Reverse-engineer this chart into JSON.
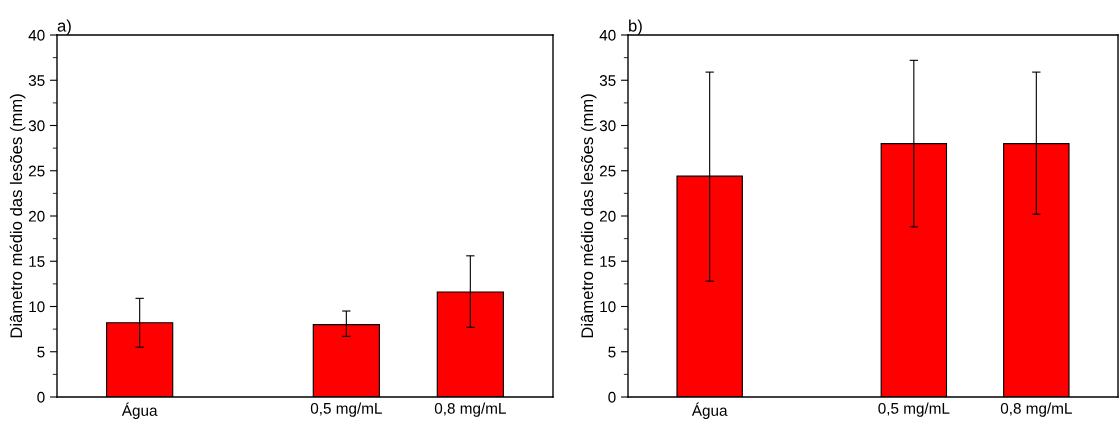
{
  "chart_data": [
    {
      "type": "bar",
      "title": "a)",
      "ylabel": "Diâmetro médio das lesões (mm)",
      "x": [
        0,
        0.5,
        0.8
      ],
      "values": [
        8.2,
        8.0,
        11.6
      ],
      "errors": [
        [
          5.5,
          10.9
        ],
        [
          6.7,
          9.5
        ],
        [
          7.7,
          15.6
        ]
      ],
      "color": "#ff0000",
      "xlim": [
        -0.2,
        1.0
      ],
      "xticks": [
        {
          "value": 0,
          "label": "Água"
        },
        {
          "value": 0.5,
          "label": "0,5 mg/mL"
        },
        {
          "value": 0.8,
          "label": "0,8 mg/mL"
        }
      ],
      "ylim": [
        0,
        40
      ],
      "yticks": [
        0,
        5,
        10,
        15,
        20,
        25,
        30,
        35,
        40
      ],
      "grid": false,
      "legend": false
    },
    {
      "type": "bar",
      "title": "b)",
      "ylabel": "Diâmetro médio das lesões (mm)",
      "x": [
        0,
        0.5,
        0.8
      ],
      "values": [
        24.4,
        28.0,
        28.0
      ],
      "errors": [
        [
          12.8,
          35.9
        ],
        [
          18.8,
          37.2
        ],
        [
          20.2,
          35.9
        ]
      ],
      "color": "#ff0000",
      "xlim": [
        -0.2,
        1.0
      ],
      "xticks": [
        {
          "value": 0,
          "label": "Água"
        },
        {
          "value": 0.5,
          "label": "0,5 mg/mL"
        },
        {
          "value": 0.8,
          "label": "0,8 mg/mL"
        }
      ],
      "ylim": [
        0,
        40
      ],
      "yticks": [
        0,
        5,
        10,
        15,
        20,
        25,
        30,
        35,
        40
      ],
      "grid": false,
      "legend": false
    }
  ]
}
